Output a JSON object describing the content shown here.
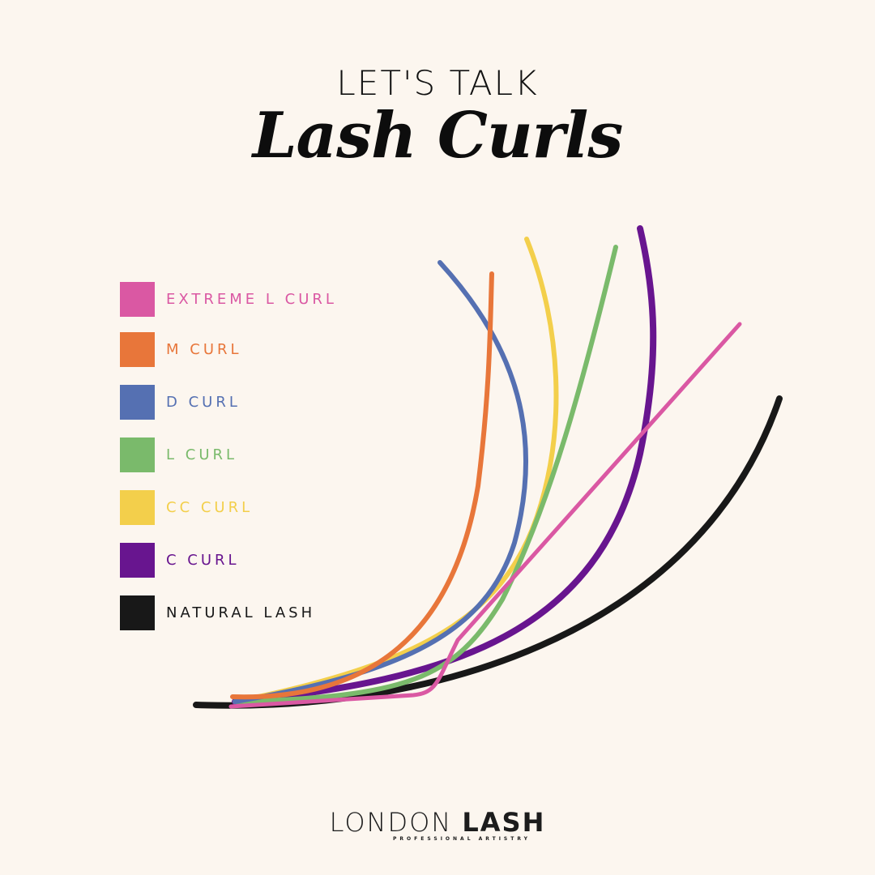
{
  "header": {
    "kicker": "LET'S TALK",
    "title": "Lash Curls"
  },
  "legend": [
    {
      "label": "EXTREME L CURL",
      "color": "#da58a3"
    },
    {
      "label": "M CURL",
      "color": "#e8763a"
    },
    {
      "label": "D CURL",
      "color": "#5570b2"
    },
    {
      "label": "L CURL",
      "color": "#7aba6b"
    },
    {
      "label": "CC CURL",
      "color": "#f3cf4b"
    },
    {
      "label": "C CURL",
      "color": "#68158f"
    },
    {
      "label": "NATURAL LASH",
      "color": "#181818"
    }
  ],
  "logo": {
    "word1": "LONDON",
    "word2": "LASH",
    "tagline": "PROFESSIONAL ARTISTRY"
  }
}
